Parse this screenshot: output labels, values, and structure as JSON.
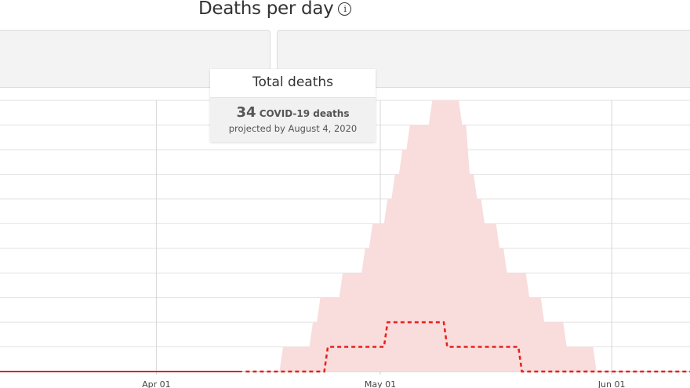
{
  "header": {
    "title": "Deaths per day",
    "info_icon": "info-circle-icon"
  },
  "tooltip": {
    "title": "Total deaths",
    "count": "34",
    "count_label": "COVID-19 deaths",
    "subtitle": "projected by August 4, 2020"
  },
  "chart_data": {
    "type": "area",
    "title": "Deaths per day",
    "xlim": [
      "2020-03-11",
      "2020-06-11"
    ],
    "ylim": [
      0,
      11
    ],
    "grid": true,
    "x_ticks": [
      {
        "date": "2020-04-01",
        "label": "Apr 01"
      },
      {
        "date": "2020-05-01",
        "label": "May 01"
      },
      {
        "date": "2020-06-01",
        "label": "Jun 01"
      }
    ],
    "colors": {
      "actual": "#d9261c",
      "projected": "#e8201a",
      "band": "#f9dcdc"
    },
    "series": [
      {
        "role": "actual",
        "style": "solid",
        "start": "2020-03-11",
        "end": "2020-04-12",
        "values_constant": 0
      },
      {
        "role": "projected",
        "style": "dashed",
        "start": "2020-04-13",
        "values": [
          0,
          0,
          0,
          0,
          0,
          0,
          0,
          0,
          0,
          0,
          0,
          1,
          1,
          1,
          1,
          1,
          1,
          1,
          1,
          2,
          2,
          2,
          2,
          2,
          2,
          2,
          2,
          1,
          1,
          1,
          1,
          1,
          1,
          1,
          1,
          1,
          1,
          0,
          0,
          0,
          0,
          0,
          0,
          0,
          0,
          0,
          0,
          0,
          0,
          0,
          0,
          0,
          0,
          0,
          0,
          0,
          0,
          0,
          0,
          0
        ]
      },
      {
        "role": "uncertainty-band",
        "style": "area",
        "start": "2020-04-17",
        "values": [
          0,
          1,
          1,
          1,
          1,
          2,
          3,
          3,
          3,
          4,
          4,
          4,
          5,
          6,
          6,
          7,
          8,
          9,
          10,
          10,
          10,
          11,
          11,
          11,
          11,
          10,
          8,
          7,
          6,
          6,
          5,
          4,
          4,
          4,
          3,
          3,
          2,
          2,
          2,
          1,
          1,
          1,
          1,
          0
        ]
      }
    ]
  }
}
